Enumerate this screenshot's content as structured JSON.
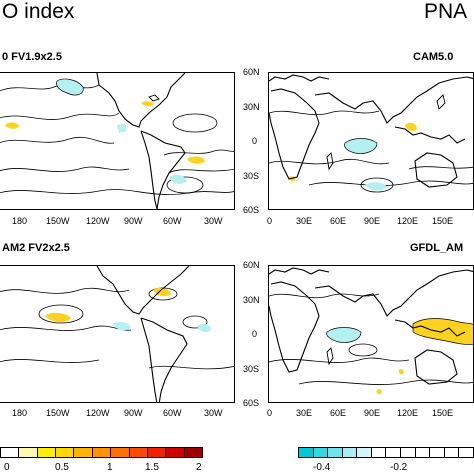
{
  "titles": {
    "left": "O index",
    "right": "PNA"
  },
  "panels": {
    "top_left": "0 FV1.9x2.5",
    "top_right": "CAM5.0",
    "bottom_left": "AM2 FV2x2.5",
    "bottom_right": "GFDL_AM"
  },
  "left_lon_ticks": [
    "180",
    "150W",
    "120W",
    "90W",
    "60W",
    "30W"
  ],
  "right_lon_ticks": [
    "0",
    "30E",
    "60E",
    "90E",
    "120E",
    "150E"
  ],
  "lat_ticks": [
    "60N",
    "30N",
    "0",
    "30S",
    "60S"
  ],
  "colorbar_left": {
    "labels": [
      "0",
      "0.5",
      "1",
      "1.5",
      "2"
    ],
    "colors": [
      "#ffffff",
      "#fff8b0",
      "#fff000",
      "#ffd800",
      "#ffb400",
      "#ff9400",
      "#ff7000",
      "#ff4a00",
      "#f02000",
      "#d00000",
      "#a00000"
    ]
  },
  "colorbar_right": {
    "labels": [
      "-0.4",
      "-0.2"
    ],
    "colors": [
      "#00c8d8",
      "#30d8e4",
      "#70e4ee",
      "#a8eef4",
      "#d0f6fa",
      "#ffffff",
      "#ffffff",
      "#ffffff",
      "#ffffff",
      "#ffffff",
      "#ffffff",
      "#ffffff"
    ]
  },
  "shading": {
    "positive": "#ffd21e",
    "negative": "#b4f0f0",
    "land": "#ffffff"
  }
}
